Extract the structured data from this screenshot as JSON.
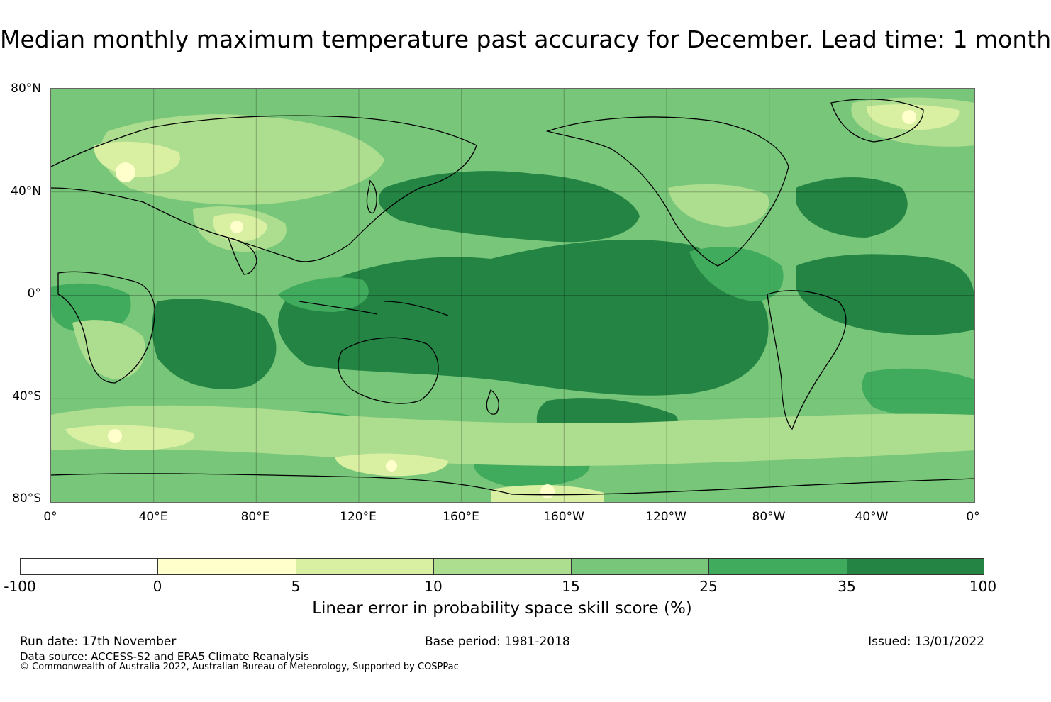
{
  "title": "Median monthly maximum temperature past accuracy for December. Lead time: 1 month",
  "map": {
    "projection": "equirectangular, Pacific-centred",
    "lat_labels": [
      "80°N",
      "40°N",
      "0°",
      "40°S",
      "80°S"
    ],
    "lon_labels": [
      "0°",
      "40°E",
      "80°E",
      "120°E",
      "160°E",
      "160°W",
      "120°W",
      "80°W",
      "40°W",
      "0°"
    ],
    "ocean_pattern": "high skill across tropical Pacific and Indian oceans; lower skill over mid-latitude land and Southern Ocean"
  },
  "colorbar": {
    "ticks": [
      "-100",
      "0",
      "5",
      "10",
      "15",
      "25",
      "35",
      "100"
    ],
    "colors": [
      "#ffffff",
      "#ffffcc",
      "#d9f0a3",
      "#addd8e",
      "#78c679",
      "#41ab5d",
      "#238443"
    ],
    "label": "Linear error in probability space skill score (%)"
  },
  "footer": {
    "run_date": "Run date: 17th November",
    "base_period": "Base period: 1981-2018",
    "issued": "Issued: 13/01/2022",
    "data_source": "Data source: ACCESS-S2 and ERA5 Climate Reanalysis",
    "copyright": "© Commonwealth of Australia 2022, Australian Bureau of Meteorology, Supported by COSPPac"
  }
}
